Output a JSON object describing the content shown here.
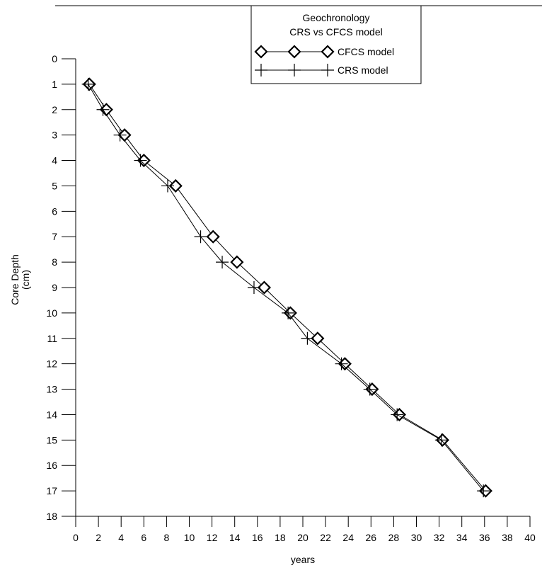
{
  "chart_data": {
    "type": "line",
    "title": "Geochronology",
    "subtitle": "CRS vs CFCS model",
    "xlabel": "years",
    "ylabel_line1": "Core Depth",
    "ylabel_line2": "(cm)",
    "xlim": [
      0,
      40
    ],
    "ylim": [
      0,
      18
    ],
    "y_inverted": true,
    "x_ticks": [
      0,
      2,
      4,
      6,
      8,
      10,
      12,
      14,
      16,
      18,
      20,
      22,
      24,
      26,
      28,
      30,
      32,
      34,
      36,
      38,
      40
    ],
    "y_ticks": [
      0,
      1,
      2,
      3,
      4,
      5,
      6,
      7,
      8,
      9,
      10,
      11,
      12,
      13,
      14,
      15,
      16,
      17,
      18
    ],
    "grid": false,
    "legend_position": "top-right",
    "series": [
      {
        "name": "CFCS model",
        "marker": "diamond",
        "color": "#000000",
        "points": [
          [
            1.2,
            1
          ],
          [
            2.7,
            2
          ],
          [
            4.3,
            3
          ],
          [
            6.0,
            4
          ],
          [
            8.8,
            5
          ],
          [
            12.1,
            7
          ],
          [
            14.2,
            8
          ],
          [
            16.6,
            9
          ],
          [
            18.9,
            10
          ],
          [
            21.3,
            11
          ],
          [
            23.7,
            12
          ],
          [
            26.1,
            13
          ],
          [
            28.5,
            14
          ],
          [
            32.3,
            15
          ],
          [
            36.1,
            17
          ]
        ]
      },
      {
        "name": "CRS model",
        "marker": "plus",
        "color": "#000000",
        "points": [
          [
            1.1,
            1
          ],
          [
            2.4,
            2
          ],
          [
            3.9,
            3
          ],
          [
            5.7,
            4
          ],
          [
            8.1,
            5
          ],
          [
            11.0,
            7
          ],
          [
            12.9,
            8
          ],
          [
            15.7,
            9
          ],
          [
            18.7,
            10
          ],
          [
            20.4,
            11
          ],
          [
            23.4,
            12
          ],
          [
            25.9,
            13
          ],
          [
            28.3,
            14
          ],
          [
            32.2,
            15
          ],
          [
            35.9,
            17
          ]
        ]
      }
    ]
  }
}
